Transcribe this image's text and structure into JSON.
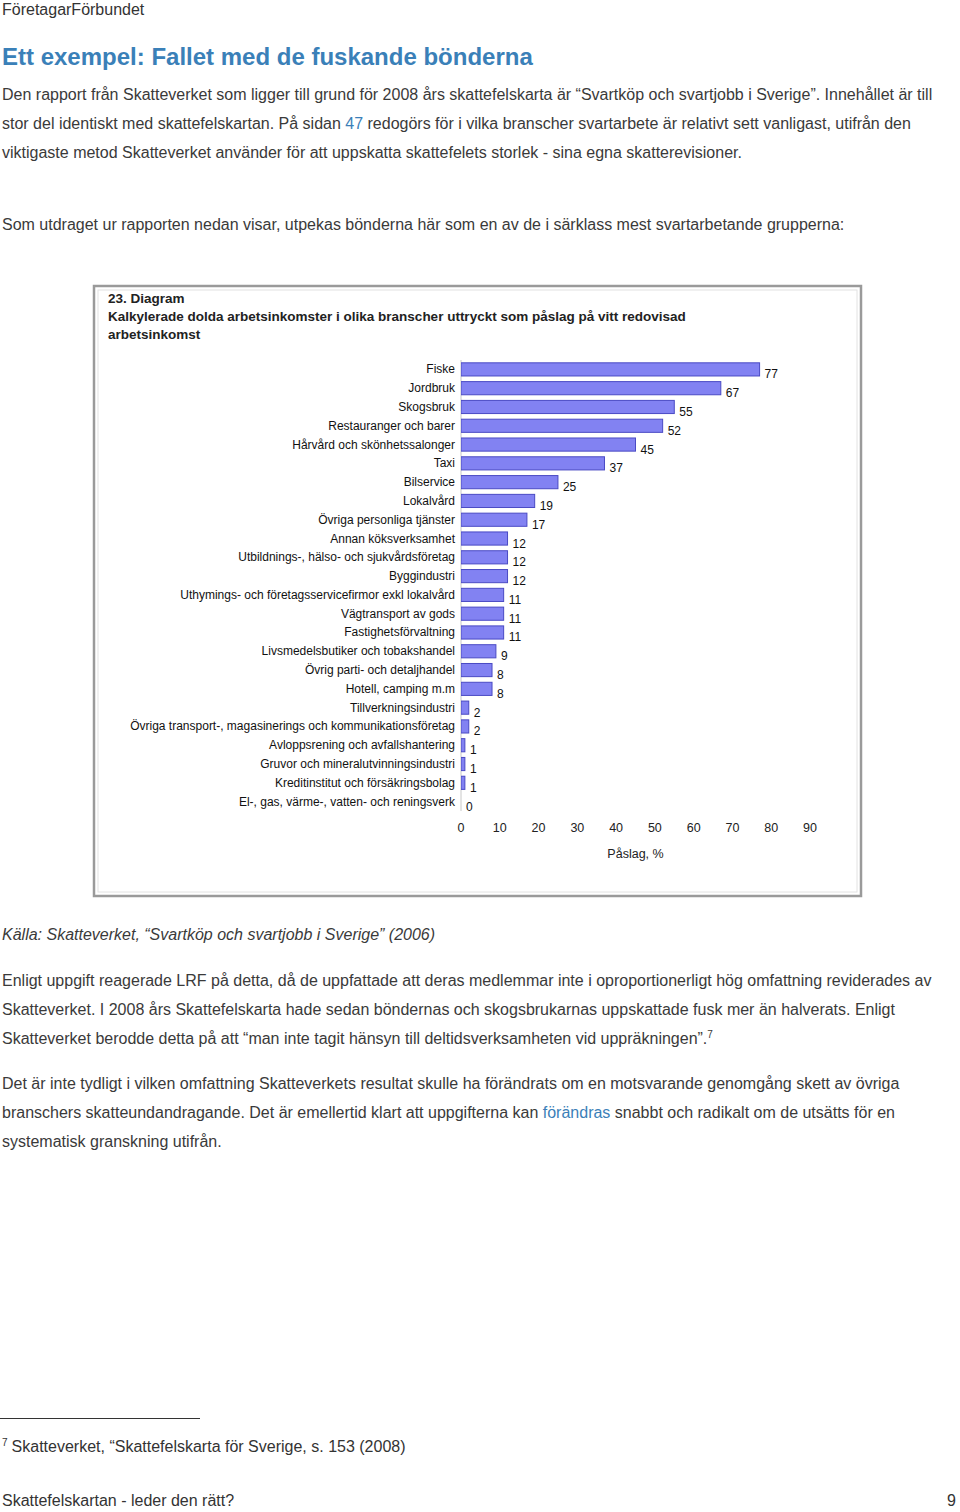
{
  "header": "FöretagarFörbundet",
  "title": "Ett exempel: Fallet med de fuskande bönderna",
  "paragraphs": [
    [
      {
        "text": "Den rapport från Skatteverket som ligger till grund för 2008 års skattefelskarta är “Svartköp och svartjobb i Sverige”. Innehållet är till stor del identiskt med skattefelskartan. På sidan "
      },
      {
        "text": "47",
        "link": true
      },
      {
        "text": " redogörs för i vilka branscher svartarbete är relativt sett vanligast, utifrån den viktigaste metod Skatteverket använder för att uppskatta skattefelets storlek - sina egna skatterevisioner."
      }
    ],
    [
      {
        "text": "Som utdraget ur rapporten nedan visar, utpekas bönderna här som en av de i särklass mest svartarbetande grupperna:"
      }
    ]
  ],
  "chart_data": {
    "type": "bar",
    "orientation": "horizontal",
    "title": "23. Diagram",
    "subtitle": "Kalkylerade dolda arbetsinkomster i olika branscher uttryckt som påslag på vitt redovisad arbetsinkomst",
    "categories": [
      "Fiske",
      "Jordbruk",
      "Skogsbruk",
      "Restauranger och barer",
      "Hårvård och skönhetssalonger",
      "Taxi",
      "Bilservice",
      "Lokalvård",
      "Övriga personliga tjänster",
      "Annan köksverksamhet",
      "Utbildnings-, hälso- och sjukvårdsföretag",
      "Byggindustri",
      "Uthymings- och företagsservicefirmor exkl lokalvård",
      "Vägtransport av gods",
      "Fastighetsförvaltning",
      "Livsmedelsbutiker och tobakshandel",
      "Övrig parti- och detaljhandel",
      "Hotell, camping m.m",
      "Tillverkningsindustri",
      "Övriga transport-, magasinerings och kommunikationsföretag",
      "Avloppsrening och avfallshantering",
      "Gruvor och mineralutvinningsindustri",
      "Kreditinstitut och försäkringsbolag",
      "El-, gas, värme-, vatten- och reningsverk"
    ],
    "values": [
      77,
      67,
      55,
      52,
      45,
      37,
      25,
      19,
      17,
      12,
      12,
      12,
      11,
      11,
      11,
      9,
      8,
      8,
      2,
      2,
      1,
      1,
      1,
      0
    ],
    "color": "#8282f2",
    "xlim": [
      0,
      90
    ],
    "xticks": [
      0,
      10,
      20,
      30,
      40,
      50,
      60,
      70,
      80,
      90
    ],
    "xlabel": "Påslag, %",
    "data_labels": true,
    "grid": false
  },
  "source": "Källa: Skatteverket, “Svartköp och svartjobb i Sverige” (2006)",
  "paragraphs_after": [
    [
      {
        "text": "Enligt uppgift reagerade LRF på detta, då de uppfattade att deras medlemmar inte i oproportionerligt hög omfattning reviderades av Skatteverket. I 2008 års Skattefelskarta hade sedan böndernas och skogsbrukarnas uppskattade fusk mer än halverats. Enligt Skatteverket berodde detta på att “man inte tagit hänsyn till deltidsverksamheten vid uppräkningen”."
      },
      {
        "text": "7",
        "sup": true
      }
    ],
    [
      {
        "text": "Det är inte tydligt i vilken omfattning Skatteverkets resultat skulle ha förändrats om en motsvarande genomgång skett av övriga branschers skatteundandragande. Det är emellertid klart att uppgifterna kan "
      },
      {
        "text": "förändras",
        "link": true
      },
      {
        "text": " snabbt och radikalt om de utsätts för en systematisk granskning utifrån."
      }
    ]
  ],
  "footnote": {
    "number": "7",
    "text": "Skatteverket, “Skattefelskarta för Sverige, s. 153 (2008)"
  },
  "footer": {
    "title": "Skattefelskartan - leder den rätt?",
    "page": 9
  }
}
